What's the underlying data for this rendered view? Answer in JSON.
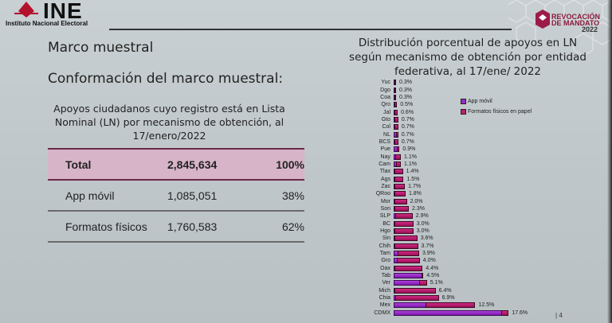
{
  "header": {
    "ine_wordmark": "INE",
    "ine_subtitle": "Instituto Nacional Electoral",
    "rev_line1": "REVOCACIÓN",
    "rev_line2": "DE MANDATO",
    "rev_year": "2022"
  },
  "left": {
    "title": "Marco muestral",
    "subtitle_main": "Conformación del marco muestral:",
    "table_caption": "Apoyos ciudadanos cuyo registro está en Lista Nominal (LN) por mecanismo de obtención, al 17/enero/2022",
    "table": [
      {
        "label": "Total",
        "count": "2,845,634",
        "pct": "100%"
      },
      {
        "label": "App móvil",
        "count": "1,085,051",
        "pct": "38%"
      },
      {
        "label": "Formatos físicos",
        "count": "1,760,583",
        "pct": "62%"
      }
    ]
  },
  "colors": {
    "app_movil": "#9a2bc8",
    "formatos_fisicos": "#c01e72",
    "total_row_bg": "#d7b4c8"
  },
  "page_number": "4",
  "chart_data": {
    "type": "bar",
    "orientation": "horizontal",
    "stacked": true,
    "title": "Distribución porcentual de apoyos en LN según mecanismo de obtención por entidad federativa, al 17/ene/ 2022",
    "legend": [
      "App móvil",
      "Formatos físicos en papel"
    ],
    "legend_position": "right",
    "grid": false,
    "categories": [
      "Yuc",
      "Dgo",
      "Coa",
      "Qro",
      "Jal",
      "Gto",
      "Col",
      "NL",
      "BCS",
      "Pue",
      "Nay",
      "Cam",
      "Tlax",
      "Ags",
      "Zac",
      "QRoo",
      "Mor",
      "Son",
      "SLP",
      "BC",
      "Hgo",
      "Sin",
      "Chih",
      "Tam",
      "Gro",
      "Oax",
      "Tab",
      "Ver",
      "Mich",
      "Chia",
      "Mex",
      "CDMX"
    ],
    "totals": [
      0.3,
      0.3,
      0.3,
      0.5,
      0.6,
      0.7,
      0.7,
      0.7,
      0.7,
      0.9,
      1.1,
      1.1,
      1.4,
      1.5,
      1.7,
      1.8,
      2.0,
      2.3,
      2.9,
      3.0,
      3.0,
      3.6,
      3.7,
      3.9,
      4.0,
      4.4,
      4.5,
      5.1,
      6.4,
      6.9,
      12.5,
      17.6
    ],
    "labels": [
      "0.3%",
      "0.3%",
      "0.3%",
      "0.5%",
      "0.6%",
      "0.7%",
      "0.7%",
      "0.7%",
      "0.7%",
      "0.9%",
      "1.1%",
      "1.1%",
      "1.4%",
      "1.5%",
      "1.7%",
      "1.8%",
      "2.0%",
      "2.3%",
      "2.9%",
      "3.0%",
      "3.0%",
      "3.6%",
      "3.7%",
      "3.9%",
      "4.0%",
      "4.4%",
      "4.5%",
      "5.1%",
      "6.4%",
      "6.9%",
      "12.5%",
      "17.6%"
    ],
    "series": [
      {
        "name": "App móvil",
        "values": [
          0.05,
          0.05,
          0.05,
          0.1,
          0.1,
          0.1,
          0.1,
          0.4,
          0.1,
          0.5,
          0.2,
          0.4,
          0.1,
          0.1,
          0.1,
          0.1,
          0.1,
          0.1,
          0.2,
          0.1,
          0.1,
          0.1,
          0.1,
          0.6,
          0.5,
          0.1,
          4.3,
          3.9,
          0.1,
          0.2,
          4.9,
          16.5
        ]
      },
      {
        "name": "Formatos físicos en papel",
        "values": [
          0.25,
          0.25,
          0.25,
          0.4,
          0.5,
          0.6,
          0.6,
          0.3,
          0.6,
          0.4,
          0.9,
          0.7,
          1.3,
          1.4,
          1.6,
          1.7,
          1.9,
          2.2,
          2.7,
          2.9,
          2.9,
          3.5,
          3.6,
          3.3,
          3.5,
          4.3,
          0.2,
          1.2,
          6.3,
          6.7,
          7.6,
          1.1
        ]
      }
    ],
    "xlabel": "",
    "ylabel": ""
  }
}
